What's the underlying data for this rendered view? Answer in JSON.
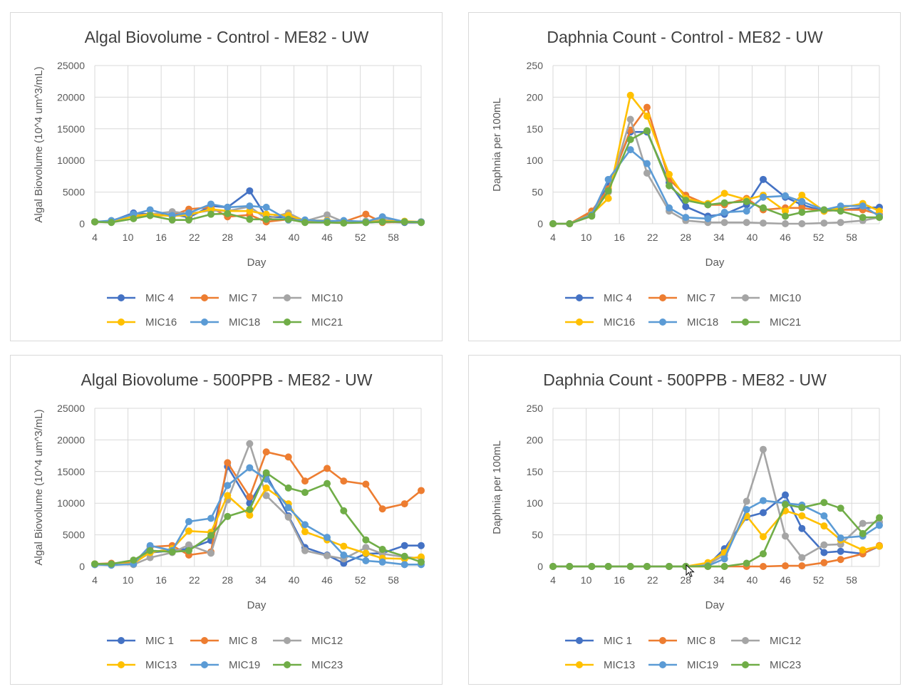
{
  "colors": {
    "series": [
      "#4472c4",
      "#ed7d31",
      "#a5a5a5",
      "#ffc000",
      "#5b9bd5",
      "#70ad47"
    ],
    "grid": "#d9d9d9",
    "text": "#595959",
    "title": "#404040",
    "border": "#d9d9d9"
  },
  "chart_data": [
    {
      "type": "line",
      "title": "Algal Biovolume - Control - ME82 - UW",
      "xlabel": "Day",
      "ylabel": "Algal Biovolume (10^4 um^3/mL)",
      "ylim": [
        0,
        25000
      ],
      "yticks": [
        "0",
        "5000",
        "10000",
        "15000",
        "20000",
        "25000"
      ],
      "xlim": [
        4,
        63
      ],
      "xticks": [
        4,
        10,
        16,
        22,
        28,
        34,
        40,
        46,
        52,
        58
      ],
      "grid": true,
      "legend": "bottom",
      "x": [
        4,
        7,
        11,
        14,
        18,
        21,
        25,
        28,
        32,
        35,
        39,
        42,
        46,
        49,
        53,
        56,
        60,
        63
      ],
      "series": [
        {
          "name": "MIC 4",
          "values": [
            300,
            400,
            1700,
            1500,
            1500,
            1000,
            2800,
            2600,
            5200,
            1100,
            1000,
            500,
            300,
            300,
            200,
            300,
            200,
            200
          ]
        },
        {
          "name": "MIC 7",
          "values": [
            300,
            400,
            1200,
            1300,
            1300,
            2300,
            2600,
            1100,
            1400,
            300,
            700,
            500,
            500,
            300,
            1500,
            200,
            300,
            300
          ]
        },
        {
          "name": "MIC10",
          "values": [
            300,
            400,
            1300,
            1500,
            1900,
            1600,
            2100,
            2000,
            2700,
            800,
            1700,
            400,
            1400,
            300,
            400,
            700,
            300,
            300
          ]
        },
        {
          "name": "MIC16",
          "values": [
            300,
            300,
            1200,
            1500,
            1200,
            1400,
            2300,
            2000,
            2000,
            1500,
            1300,
            500,
            500,
            300,
            300,
            400,
            400,
            300
          ]
        },
        {
          "name": "MIC18",
          "values": [
            300,
            500,
            1500,
            2200,
            1300,
            1700,
            3100,
            2600,
            2800,
            2600,
            600,
            600,
            400,
            500,
            300,
            1100,
            300,
            300
          ]
        },
        {
          "name": "MIC21",
          "values": [
            300,
            200,
            800,
            1300,
            600,
            600,
            1500,
            1600,
            700,
            700,
            700,
            200,
            200,
            100,
            200,
            300,
            300,
            200
          ]
        }
      ]
    },
    {
      "type": "line",
      "title": "Daphnia Count - Control - ME82 - UW",
      "xlabel": "Day",
      "ylabel": "Daphnia per 100mL",
      "ylim": [
        0,
        250
      ],
      "yticks": [
        "0",
        "50",
        "100",
        "150",
        "200",
        "250"
      ],
      "xlim": [
        4,
        63
      ],
      "xticks": [
        4,
        10,
        16,
        22,
        28,
        34,
        40,
        46,
        52,
        58
      ],
      "grid": true,
      "legend": "bottom",
      "x": [
        4,
        7,
        11,
        14,
        18,
        21,
        25,
        28,
        32,
        35,
        39,
        42,
        46,
        49,
        53,
        56,
        60,
        63
      ],
      "series": [
        {
          "name": "MIC 4",
          "values": [
            0,
            0,
            18,
            60,
            145,
            145,
            65,
            27,
            12,
            15,
            30,
            70,
            42,
            30,
            20,
            22,
            25,
            26
          ]
        },
        {
          "name": "MIC 7",
          "values": [
            0,
            0,
            20,
            55,
            148,
            184,
            70,
            45,
            30,
            30,
            40,
            22,
            25,
            25,
            20,
            22,
            22,
            15
          ]
        },
        {
          "name": "MIC10",
          "values": [
            0,
            0,
            15,
            50,
            165,
            80,
            20,
            5,
            2,
            2,
            2,
            1,
            0,
            0,
            1,
            2,
            5,
            10
          ]
        },
        {
          "name": "MIC16",
          "values": [
            0,
            0,
            15,
            40,
            203,
            170,
            78,
            40,
            32,
            48,
            38,
            45,
            20,
            45,
            20,
            25,
            32,
            20
          ]
        },
        {
          "name": "MIC18",
          "values": [
            0,
            0,
            14,
            70,
            117,
            95,
            25,
            10,
            8,
            18,
            20,
            42,
            44,
            35,
            22,
            28,
            28,
            12
          ]
        },
        {
          "name": "MIC21",
          "values": [
            0,
            0,
            12,
            52,
            133,
            147,
            60,
            37,
            30,
            33,
            35,
            25,
            12,
            18,
            22,
            20,
            10,
            10
          ]
        }
      ]
    },
    {
      "type": "line",
      "title": "Algal Biovolume - 500PPB - ME82  - UW",
      "xlabel": "Day",
      "ylabel": "Algal Biovolume (10^4 um^3/mL)",
      "ylim": [
        0,
        25000
      ],
      "yticks": [
        "0",
        "5000",
        "10000",
        "15000",
        "20000",
        "25000"
      ],
      "xlim": [
        4,
        63
      ],
      "xticks": [
        4,
        10,
        16,
        22,
        28,
        34,
        40,
        46,
        52,
        58
      ],
      "grid": true,
      "legend": "bottom",
      "x": [
        4,
        7,
        11,
        14,
        18,
        21,
        25,
        28,
        32,
        35,
        39,
        42,
        46,
        49,
        53,
        56,
        60,
        63
      ],
      "series": [
        {
          "name": "MIC 1",
          "values": [
            300,
            400,
            600,
            2200,
            2500,
            2800,
            4100,
            15800,
            10000,
            14500,
            8000,
            3000,
            1800,
            500,
            2000,
            2100,
            3300,
            3300
          ]
        },
        {
          "name": "MIC 8",
          "values": [
            400,
            500,
            600,
            3100,
            3300,
            1800,
            2300,
            16400,
            11000,
            18100,
            17300,
            13500,
            15500,
            13500,
            13000,
            9100,
            9900,
            12000
          ]
        },
        {
          "name": "MIC12",
          "values": [
            300,
            300,
            300,
            1400,
            2200,
            3400,
            2100,
            10500,
            19400,
            11200,
            7800,
            2500,
            1700,
            1200,
            3000,
            2000,
            1500,
            1300
          ]
        },
        {
          "name": "MIC13",
          "values": [
            400,
            300,
            500,
            2200,
            2800,
            5600,
            5400,
            11200,
            8100,
            12400,
            9900,
            5500,
            4200,
            3200,
            2100,
            1300,
            1200,
            1500
          ]
        },
        {
          "name": "MIC19",
          "values": [
            300,
            200,
            400,
            3300,
            2500,
            7100,
            7600,
            12800,
            15600,
            13800,
            9300,
            6600,
            4600,
            1800,
            900,
            700,
            300,
            300
          ]
        },
        {
          "name": "MIC23",
          "values": [
            400,
            400,
            1000,
            2500,
            2300,
            2500,
            4900,
            7900,
            9000,
            14800,
            12400,
            11700,
            13100,
            8800,
            4200,
            2700,
            1600,
            700
          ]
        }
      ]
    },
    {
      "type": "line",
      "title": "Daphnia Count - 500PPB - ME82 - UW",
      "xlabel": "Day",
      "ylabel": "Daphnia per 100mL",
      "ylim": [
        0,
        250
      ],
      "yticks": [
        "0",
        "50",
        "100",
        "150",
        "200",
        "250"
      ],
      "xlim": [
        4,
        63
      ],
      "xticks": [
        4,
        10,
        16,
        22,
        28,
        34,
        40,
        46,
        52,
        58
      ],
      "grid": true,
      "legend": "bottom",
      "x": [
        4,
        7,
        11,
        14,
        18,
        21,
        25,
        28,
        32,
        35,
        39,
        42,
        46,
        49,
        53,
        56,
        60,
        63
      ],
      "series": [
        {
          "name": "MIC 1",
          "values": [
            0,
            0,
            0,
            0,
            0,
            0,
            0,
            0,
            2,
            28,
            78,
            85,
            113,
            60,
            22,
            24,
            20,
            32
          ]
        },
        {
          "name": "MIC 8",
          "values": [
            0,
            0,
            0,
            0,
            0,
            0,
            0,
            0,
            0,
            0,
            0,
            0,
            1,
            1,
            6,
            11,
            20,
            33
          ]
        },
        {
          "name": "MIC12",
          "values": [
            0,
            0,
            0,
            0,
            0,
            0,
            0,
            0,
            3,
            18,
            103,
            185,
            48,
            14,
            34,
            35,
            68,
            70
          ]
        },
        {
          "name": "MIC13",
          "values": [
            0,
            0,
            0,
            0,
            0,
            0,
            0,
            0,
            6,
            22,
            80,
            47,
            88,
            80,
            64,
            42,
            26,
            32
          ]
        },
        {
          "name": "MIC19",
          "values": [
            0,
            0,
            0,
            0,
            0,
            0,
            0,
            0,
            1,
            12,
            90,
            104,
            100,
            97,
            80,
            45,
            48,
            65
          ]
        },
        {
          "name": "MIC23",
          "values": [
            0,
            0,
            0,
            0,
            0,
            0,
            0,
            0,
            0,
            0,
            5,
            20,
            98,
            93,
            101,
            92,
            52,
            77
          ]
        }
      ]
    }
  ]
}
